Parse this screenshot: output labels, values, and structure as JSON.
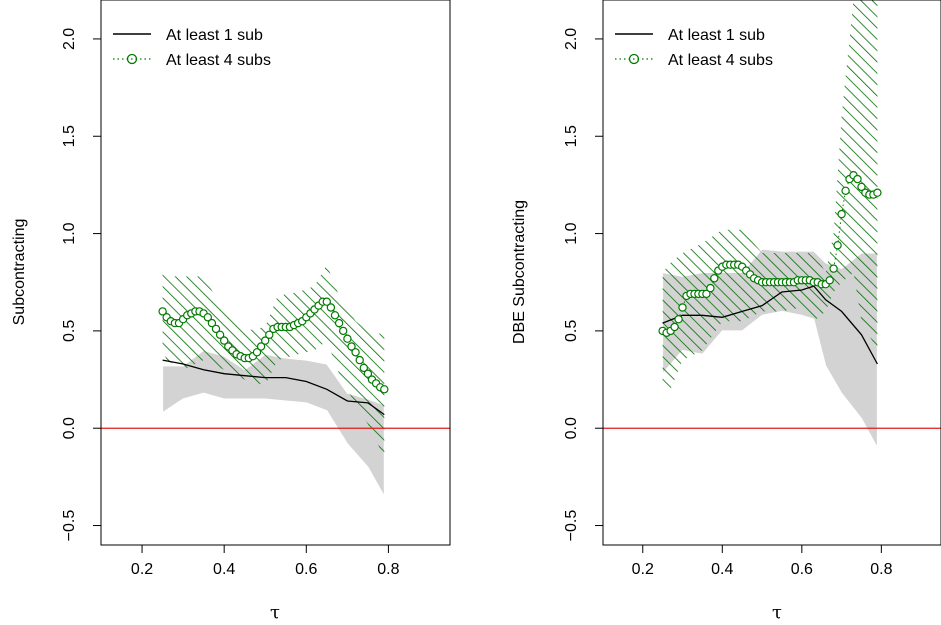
{
  "chart_data": [
    {
      "type": "line",
      "xlabel": "τ",
      "ylabel": "Subcontracting",
      "xlim": [
        0.1,
        0.95
      ],
      "ylim": [
        -0.6,
        2.2
      ],
      "xticks": [
        "0.2",
        "0.4",
        "0.6",
        "0.8"
      ],
      "yticks": [
        "−0.5",
        "0.0",
        "0.5",
        "1.0",
        "1.5",
        "2.0"
      ],
      "reference_line": {
        "y": 0,
        "color": "#e31a1c"
      },
      "legend": {
        "placement": "top-left"
      },
      "series": [
        {
          "name": "At least 1 sub",
          "style": "solid",
          "color": "#000000",
          "x": [
            0.25,
            0.3,
            0.35,
            0.4,
            0.45,
            0.5,
            0.55,
            0.6,
            0.65,
            0.7,
            0.75,
            0.79
          ],
          "y": [
            0.35,
            0.33,
            0.3,
            0.28,
            0.27,
            0.26,
            0.26,
            0.24,
            0.2,
            0.14,
            0.13,
            0.07
          ],
          "band_upper": [
            0.32,
            0.32,
            0.4,
            0.37,
            0.3,
            0.38,
            0.36,
            0.35,
            0.33,
            0.18,
            0.15,
            0.12
          ],
          "band_lower": [
            0.08,
            0.15,
            0.18,
            0.15,
            0.15,
            0.15,
            0.14,
            0.13,
            0.09,
            -0.08,
            -0.2,
            -0.35
          ],
          "band_color": "#d3d3d3"
        },
        {
          "name": "At least 4 subs",
          "style": "dotted-circles",
          "color": "#007a00",
          "x": [
            0.25,
            0.26,
            0.27,
            0.28,
            0.29,
            0.3,
            0.31,
            0.32,
            0.33,
            0.34,
            0.35,
            0.36,
            0.37,
            0.38,
            0.39,
            0.4,
            0.41,
            0.42,
            0.43,
            0.44,
            0.45,
            0.46,
            0.47,
            0.48,
            0.49,
            0.5,
            0.51,
            0.52,
            0.53,
            0.54,
            0.55,
            0.56,
            0.57,
            0.58,
            0.59,
            0.6,
            0.61,
            0.62,
            0.63,
            0.64,
            0.65,
            0.66,
            0.67,
            0.68,
            0.69,
            0.7,
            0.71,
            0.72,
            0.73,
            0.74,
            0.75,
            0.76,
            0.77,
            0.78,
            0.79
          ],
          "y": [
            0.6,
            0.57,
            0.55,
            0.54,
            0.54,
            0.56,
            0.58,
            0.59,
            0.6,
            0.6,
            0.59,
            0.57,
            0.54,
            0.51,
            0.48,
            0.45,
            0.42,
            0.4,
            0.38,
            0.37,
            0.36,
            0.36,
            0.37,
            0.39,
            0.42,
            0.45,
            0.48,
            0.51,
            0.52,
            0.52,
            0.52,
            0.52,
            0.53,
            0.54,
            0.55,
            0.57,
            0.59,
            0.61,
            0.63,
            0.65,
            0.65,
            0.62,
            0.58,
            0.54,
            0.5,
            0.46,
            0.42,
            0.39,
            0.35,
            0.31,
            0.28,
            0.25,
            0.23,
            0.21,
            0.2
          ],
          "band_upper_x": [
            0.25,
            0.26,
            0.3,
            0.35,
            0.4,
            0.45,
            0.5,
            0.53,
            0.58,
            0.62,
            0.65,
            0.68,
            0.72,
            0.75,
            0.79
          ],
          "band_upper_y": [
            0.82,
            0.78,
            0.78,
            0.78,
            0.6,
            0.5,
            0.52,
            0.68,
            0.7,
            0.73,
            0.84,
            0.68,
            0.55,
            0.5,
            0.48
          ],
          "band_lower_y": [
            0.4,
            0.35,
            0.3,
            0.35,
            0.3,
            0.25,
            0.22,
            0.35,
            0.38,
            0.4,
            0.45,
            0.28,
            0.12,
            0.02,
            -0.15
          ],
          "band_fill": "hatched"
        }
      ]
    },
    {
      "type": "line",
      "xlabel": "τ",
      "ylabel": "DBE Subcontracting",
      "xlim": [
        0.1,
        0.95
      ],
      "ylim": [
        -0.6,
        2.2
      ],
      "xticks": [
        "0.2",
        "0.4",
        "0.6",
        "0.8"
      ],
      "yticks": [
        "−0.5",
        "0.0",
        "0.5",
        "1.0",
        "1.5",
        "2.0"
      ],
      "reference_line": {
        "y": 0,
        "color": "#e31a1c"
      },
      "legend": {
        "placement": "top-left"
      },
      "series": [
        {
          "name": "At least 1 sub",
          "style": "solid",
          "color": "#000000",
          "x": [
            0.25,
            0.3,
            0.35,
            0.4,
            0.45,
            0.5,
            0.55,
            0.6,
            0.63,
            0.66,
            0.7,
            0.75,
            0.79
          ],
          "y": [
            0.54,
            0.58,
            0.58,
            0.57,
            0.6,
            0.63,
            0.7,
            0.71,
            0.73,
            0.66,
            0.6,
            0.48,
            0.33
          ],
          "band_upper": [
            0.8,
            0.78,
            0.8,
            0.8,
            0.8,
            0.92,
            0.91,
            0.91,
            0.91,
            0.85,
            0.82,
            0.9,
            0.9
          ],
          "band_lower": [
            0.28,
            0.4,
            0.38,
            0.5,
            0.5,
            0.58,
            0.6,
            0.58,
            0.56,
            0.32,
            0.18,
            0.05,
            -0.1
          ],
          "band_color": "#d3d3d3"
        },
        {
          "name": "At least 4 subs",
          "style": "dotted-circles",
          "color": "#007a00",
          "x": [
            0.25,
            0.26,
            0.27,
            0.28,
            0.29,
            0.3,
            0.31,
            0.32,
            0.33,
            0.34,
            0.35,
            0.36,
            0.37,
            0.38,
            0.39,
            0.4,
            0.41,
            0.42,
            0.43,
            0.44,
            0.45,
            0.46,
            0.47,
            0.48,
            0.49,
            0.5,
            0.51,
            0.52,
            0.53,
            0.54,
            0.55,
            0.56,
            0.57,
            0.58,
            0.59,
            0.6,
            0.61,
            0.62,
            0.63,
            0.64,
            0.65,
            0.66,
            0.67,
            0.68,
            0.69,
            0.7,
            0.71,
            0.72,
            0.73,
            0.74,
            0.75,
            0.76,
            0.77,
            0.78,
            0.79
          ],
          "y": [
            0.5,
            0.49,
            0.5,
            0.52,
            0.56,
            0.62,
            0.68,
            0.69,
            0.69,
            0.69,
            0.69,
            0.69,
            0.72,
            0.77,
            0.81,
            0.83,
            0.84,
            0.84,
            0.84,
            0.84,
            0.83,
            0.81,
            0.79,
            0.77,
            0.76,
            0.75,
            0.75,
            0.75,
            0.75,
            0.75,
            0.75,
            0.75,
            0.75,
            0.75,
            0.76,
            0.76,
            0.76,
            0.76,
            0.75,
            0.75,
            0.74,
            0.74,
            0.76,
            0.82,
            0.94,
            1.1,
            1.22,
            1.28,
            1.3,
            1.28,
            1.24,
            1.21,
            1.2,
            1.2,
            1.21
          ],
          "band_upper_x": [
            0.25,
            0.27,
            0.3,
            0.35,
            0.4,
            0.45,
            0.5,
            0.55,
            0.6,
            0.63,
            0.66,
            0.68,
            0.7,
            0.73,
            0.75,
            0.79
          ],
          "band_upper_y": [
            0.8,
            0.85,
            0.9,
            0.95,
            1.02,
            1.02,
            0.9,
            0.9,
            0.9,
            0.9,
            0.8,
            1.0,
            1.6,
            2.2,
            2.2,
            2.2
          ],
          "band_lower_y": [
            0.2,
            0.2,
            0.35,
            0.4,
            0.55,
            0.55,
            0.6,
            0.6,
            0.62,
            0.55,
            0.6,
            0.7,
            0.75,
            0.8,
            0.55,
            0.4
          ],
          "band_fill": "hatched"
        }
      ]
    }
  ]
}
